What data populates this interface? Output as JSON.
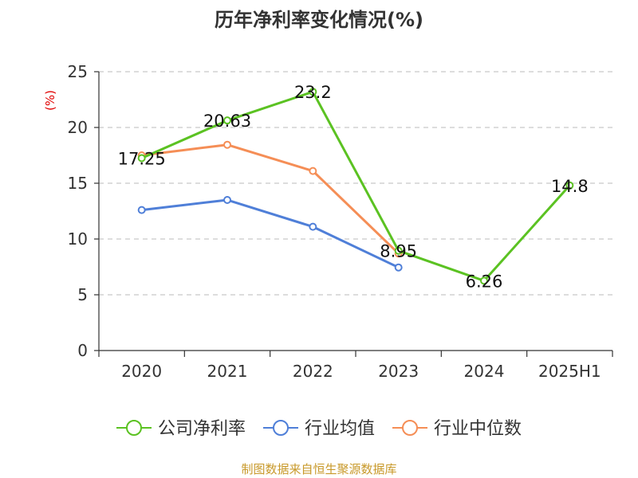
{
  "chart_data": {
    "type": "line",
    "title": "历年净利率变化情况(%)",
    "ylabel": "(%)",
    "xlabel": "",
    "categories": [
      "2020",
      "2021",
      "2022",
      "2023",
      "2024",
      "2025H1"
    ],
    "ylim": [
      0,
      25
    ],
    "yticks": [
      "0",
      "5",
      "10",
      "15",
      "20",
      "25"
    ],
    "grid": true,
    "legend_position": "bottom",
    "series": [
      {
        "name": "公司净利率",
        "color": "#5bc222",
        "values": [
          17.25,
          20.63,
          23.2,
          8.95,
          6.26,
          14.8
        ],
        "labels": [
          "17.25",
          "20.63",
          "23.2",
          "8.95",
          "6.26",
          "14.8"
        ]
      },
      {
        "name": "行业均值",
        "color": "#4f7fd8",
        "values": [
          12.6,
          13.5,
          11.1,
          7.45,
          null,
          null
        ]
      },
      {
        "name": "行业中位数",
        "color": "#f58e56",
        "values": [
          17.5,
          18.45,
          16.1,
          8.7,
          null,
          null
        ]
      }
    ]
  },
  "footer": {
    "source": "制图数据来自恒生聚源数据库"
  }
}
